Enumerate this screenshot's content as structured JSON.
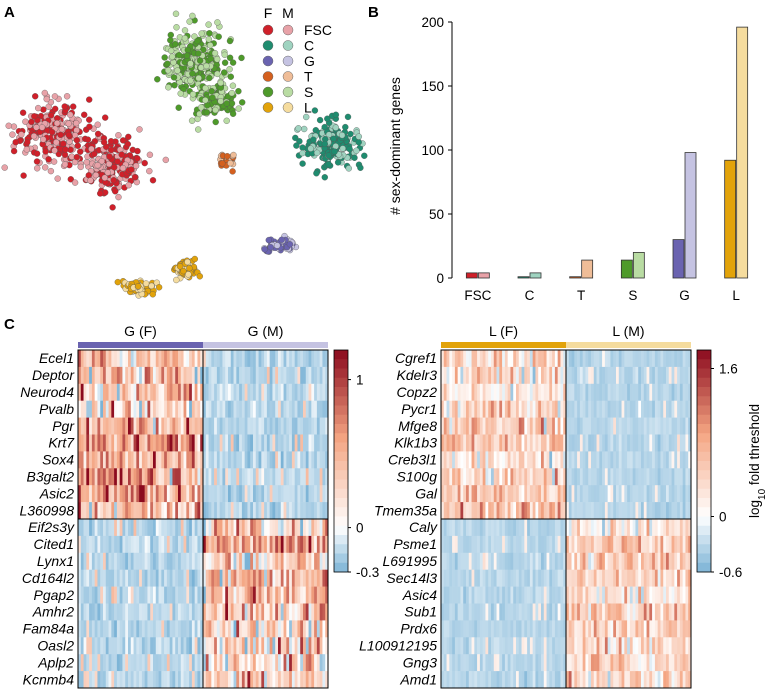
{
  "panels": {
    "a": "A",
    "b": "B",
    "c": "C"
  },
  "tsne_legend": {
    "header_f": "F",
    "header_m": "M",
    "items": [
      {
        "label": "FSC",
        "f_color": "#d0202a",
        "m_color": "#e8a2a8"
      },
      {
        "label": "C",
        "f_color": "#1f8c6f",
        "m_color": "#9fd3c0"
      },
      {
        "label": "G",
        "f_color": "#6a63b0",
        "m_color": "#c5c3e2"
      },
      {
        "label": "T",
        "f_color": "#d4601f",
        "m_color": "#efbd98"
      },
      {
        "label": "S",
        "f_color": "#4e9a2a",
        "m_color": "#b9dca3"
      },
      {
        "label": "L",
        "f_color": "#e2a30a",
        "m_color": "#f5dc9e"
      }
    ]
  },
  "chart_data": [
    {
      "type": "bar",
      "title": "",
      "xlabel": "",
      "ylabel": "# sex-dominant genes",
      "ylim": [
        0,
        200
      ],
      "yticks": [
        "0",
        "50",
        "100",
        "150",
        "200"
      ],
      "categories": [
        "FSC",
        "C",
        "T",
        "S",
        "G",
        "L"
      ],
      "series": [
        {
          "name": "F",
          "values": [
            4,
            1,
            1,
            14,
            30,
            92
          ],
          "colors": [
            "#d0202a",
            "#1f8c6f",
            "#d4601f",
            "#4e9a2a",
            "#6a63b0",
            "#e2a30a"
          ]
        },
        {
          "name": "M",
          "values": [
            4,
            4,
            14,
            20,
            98,
            196
          ],
          "colors": [
            "#e8a2a8",
            "#9fd3c0",
            "#efbd98",
            "#b9dca3",
            "#c5c3e2",
            "#f5dc9e"
          ]
        }
      ]
    },
    {
      "type": "heatmap",
      "groups": [
        {
          "label": "G (F)",
          "color": "#6a63b0"
        },
        {
          "label": "G (M)",
          "color": "#c5c3e2"
        }
      ],
      "rows": [
        "Ecel1",
        "Deptor",
        "Neurod4",
        "Pvalb",
        "Pgr",
        "Krt7",
        "Sox4",
        "B3galt2",
        "Asic2",
        "L360998",
        "Eif2s3y",
        "Cited1",
        "Lynx1",
        "Cd164l2",
        "Pgap2",
        "Amhr2",
        "Fam84a",
        "Oasl2",
        "Aplp2",
        "Kcnmb4"
      ],
      "colorbar_ticks": [
        "1",
        "0",
        "-0.3"
      ],
      "color_range": [
        -0.3,
        1.2
      ],
      "colorbar_label": ""
    },
    {
      "type": "heatmap",
      "groups": [
        {
          "label": "L (F)",
          "color": "#e2a30a"
        },
        {
          "label": "L (M)",
          "color": "#f5dc9e"
        }
      ],
      "rows": [
        "Cgref1",
        "Kdelr3",
        "Copz2",
        "Pycr1",
        "Mfge8",
        "Klk1b3",
        "Creb3l1",
        "S100g",
        "Gal",
        "Tmem35a",
        "Caly",
        "Psme1",
        "L691995",
        "Sec14l3",
        "Asic4",
        "Sub1",
        "Prdx6",
        "L100912195",
        "Gng3",
        "Amd1"
      ],
      "colorbar_ticks": [
        "1.6",
        "0",
        "-0.6"
      ],
      "color_range": [
        -0.6,
        1.8
      ],
      "colorbar_label": "log10 fold threshold",
      "colorbar_label_parts": [
        "log",
        "10",
        " fold threshold"
      ]
    }
  ]
}
